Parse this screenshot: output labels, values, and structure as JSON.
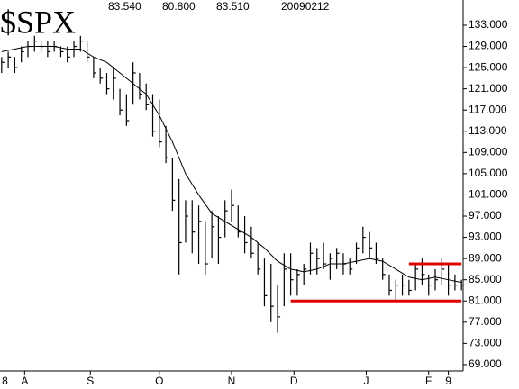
{
  "chart_data": {
    "type": "ohlc",
    "title": "$SPX",
    "subtitle": [
      "83.540",
      "80.800",
      "83.510",
      "20090212"
    ],
    "x": [
      0,
      2,
      4,
      6,
      8,
      10,
      12,
      14,
      16,
      18,
      20,
      22,
      24,
      26,
      28,
      30,
      32,
      34,
      36,
      38,
      40,
      42,
      44,
      46,
      48,
      50,
      52,
      54,
      56,
      58,
      60,
      62,
      64,
      66,
      68,
      70,
      72,
      74,
      76,
      78,
      80,
      82,
      84,
      86,
      88,
      90,
      92,
      94,
      96,
      98,
      100,
      102,
      104,
      106,
      108,
      110,
      112,
      114,
      116,
      118,
      120,
      122,
      124,
      126,
      128,
      130,
      132,
      134,
      136,
      138,
      140
    ],
    "high": [
      127,
      128,
      127,
      129,
      130,
      131,
      130,
      130,
      130,
      129,
      129,
      130,
      131,
      130,
      127,
      125,
      124,
      125,
      121,
      120,
      126,
      124,
      122,
      120,
      119,
      114,
      108,
      104,
      100,
      100,
      99,
      96,
      98,
      97,
      100,
      102,
      99,
      97,
      95,
      92,
      89,
      88,
      84,
      90,
      90,
      87,
      88,
      92,
      91,
      92,
      90,
      91,
      90,
      89,
      92,
      95,
      94,
      92,
      89,
      86,
      85,
      86,
      85,
      88,
      89,
      86,
      87,
      89,
      88,
      86,
      85
    ],
    "low": [
      124,
      125,
      124,
      126,
      127,
      128,
      128,
      127,
      128,
      127,
      126,
      127,
      128,
      126,
      123,
      122,
      120,
      119,
      116,
      114,
      118,
      119,
      117,
      112,
      110,
      107,
      98,
      86,
      92,
      90,
      88,
      86,
      89,
      88,
      93,
      96,
      93,
      90,
      89,
      86,
      80,
      77,
      75,
      80,
      82,
      82,
      84,
      86,
      86,
      87,
      85,
      87,
      86,
      86,
      88,
      90,
      89,
      88,
      85,
      82,
      81,
      82,
      82,
      83,
      84,
      82,
      83,
      84,
      82,
      83,
      83
    ],
    "close": [
      126,
      127,
      125,
      128,
      129,
      130,
      129,
      128,
      129,
      128,
      127,
      129,
      130,
      127,
      124,
      123,
      121,
      123,
      117,
      115,
      124,
      120,
      118,
      113,
      111,
      108,
      100,
      92,
      97,
      94,
      96,
      88,
      95,
      93,
      98,
      99,
      94,
      92,
      90,
      87,
      82,
      80,
      78,
      87,
      85,
      86,
      87,
      90,
      89,
      88,
      89,
      90,
      88,
      87,
      91,
      93,
      91,
      89,
      86,
      83,
      84,
      84,
      83,
      87,
      86,
      84,
      85,
      87,
      84,
      84,
      84
    ],
    "color": "#000000",
    "ma_x": [
      0,
      4,
      8,
      12,
      16,
      20,
      24,
      28,
      32,
      36,
      40,
      44,
      48,
      52,
      56,
      60,
      64,
      68,
      72,
      76,
      80,
      84,
      88,
      92,
      96,
      100,
      104,
      108,
      112,
      116,
      120,
      124,
      128,
      132,
      136,
      140
    ],
    "ma": [
      128,
      128.5,
      129,
      129,
      129,
      128.5,
      128.5,
      127,
      126,
      124,
      122,
      120,
      116,
      111,
      105,
      101,
      97.5,
      96,
      94.5,
      93,
      91,
      88.5,
      87,
      86.5,
      87,
      88,
      88,
      88.5,
      89,
      88.5,
      87,
      85.5,
      85,
      85.5,
      85,
      84.5
    ],
    "lines": [
      {
        "y": 88,
        "x": [
          124,
          140
        ],
        "color": "#e00000"
      },
      {
        "y": 81,
        "x": [
          88,
          140
        ],
        "color": "#e00000"
      }
    ],
    "xlim": [
      -0.5,
      140.5
    ],
    "ylim": [
      67.8,
      137.75
    ],
    "xticks": [
      {
        "value": 1,
        "label": "8"
      },
      {
        "value": 7,
        "label": "A"
      },
      {
        "value": 27,
        "label": "S"
      },
      {
        "value": 48,
        "label": "O"
      },
      {
        "value": 70,
        "label": "N"
      },
      {
        "value": 89,
        "label": "D"
      },
      {
        "value": 111,
        "label": "J"
      },
      {
        "value": 130,
        "label": "F"
      },
      {
        "value": 136,
        "label": "9"
      }
    ],
    "yticks": [
      {
        "value": 69,
        "label": "69.000"
      },
      {
        "value": 73,
        "label": "73.000"
      },
      {
        "value": 77,
        "label": "77.000"
      },
      {
        "value": 81,
        "label": "81.000"
      },
      {
        "value": 85,
        "label": "85.000"
      },
      {
        "value": 89,
        "label": "89.000"
      },
      {
        "value": 93,
        "label": "93.000"
      },
      {
        "value": 97,
        "label": "97.000"
      },
      {
        "value": 101,
        "label": "101.000"
      },
      {
        "value": 105,
        "label": "105.000"
      },
      {
        "value": 109,
        "label": "109.000"
      },
      {
        "value": 113,
        "label": "113.000"
      },
      {
        "value": 117,
        "label": "117.000"
      },
      {
        "value": 121,
        "label": "121.000"
      },
      {
        "value": 125,
        "label": "125.000"
      },
      {
        "value": 129,
        "label": "129.000"
      },
      {
        "value": 133,
        "label": "133.000"
      }
    ]
  }
}
